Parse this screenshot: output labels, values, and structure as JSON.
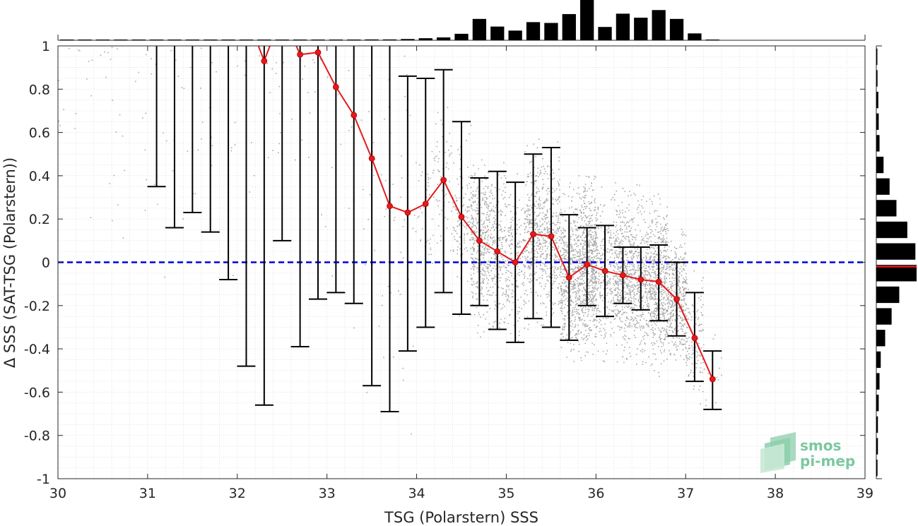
{
  "chart_data": {
    "type": "scatter",
    "xlabel": "TSG (Polarstern) SSS",
    "ylabel": "Δ SSS (SAT-TSG (Polarstern))",
    "xlim": [
      30,
      39
    ],
    "ylim": [
      -1,
      1
    ],
    "x_ticks": [
      "30",
      "31",
      "32",
      "33",
      "34",
      "35",
      "36",
      "37",
      "38",
      "39"
    ],
    "y_ticks": [
      "-1",
      "-0.8",
      "-0.6",
      "-0.4",
      "-0.2",
      "0",
      "0.2",
      "0.4",
      "0.6",
      "0.8",
      "1"
    ],
    "grid": true,
    "reference_line": {
      "y": 0,
      "style": "dashed",
      "color": "#0000e0"
    },
    "colors": {
      "mean_line": "#e41a1c",
      "error_bars": "#000000",
      "scatter": "#8c8c8c",
      "histogram": "#000000"
    },
    "binned_mean": {
      "x": [
        31.1,
        31.3,
        31.5,
        31.7,
        31.9,
        32.1,
        32.3,
        32.5,
        32.7,
        32.9,
        33.1,
        33.3,
        33.5,
        33.7,
        33.9,
        34.1,
        34.3,
        34.5,
        34.7,
        34.9,
        35.1,
        35.3,
        35.5,
        35.7,
        35.9,
        36.1,
        36.3,
        36.5,
        36.7,
        36.9,
        37.1,
        37.3
      ],
      "mean": [
        null,
        null,
        null,
        null,
        null,
        null,
        0.93,
        null,
        0.96,
        0.97,
        0.81,
        0.68,
        0.48,
        0.26,
        0.23,
        0.27,
        0.38,
        0.21,
        0.1,
        0.05,
        0.0,
        0.13,
        0.12,
        -0.07,
        -0.01,
        -0.04,
        -0.06,
        -0.08,
        -0.09,
        -0.17,
        -0.35,
        -0.54
      ],
      "lower": [
        0.35,
        0.16,
        0.23,
        0.14,
        -0.08,
        -0.48,
        -0.66,
        0.1,
        -0.39,
        -0.17,
        -0.14,
        -0.19,
        -0.57,
        -0.69,
        -0.41,
        -0.3,
        -0.14,
        -0.24,
        -0.2,
        -0.31,
        -0.37,
        -0.26,
        -0.3,
        -0.36,
        -0.2,
        -0.25,
        -0.19,
        -0.22,
        -0.27,
        -0.34,
        -0.55,
        -0.68
      ],
      "upper": [
        1.0,
        1.0,
        1.0,
        1.0,
        1.0,
        1.0,
        1.0,
        1.0,
        1.0,
        1.0,
        1.0,
        1.0,
        1.0,
        1.0,
        0.86,
        0.85,
        0.89,
        0.65,
        0.39,
        0.42,
        0.37,
        0.5,
        0.53,
        0.22,
        0.16,
        0.17,
        0.07,
        0.07,
        0.08,
        0.0,
        -0.14,
        -0.41
      ]
    },
    "top_histogram": {
      "x": [
        30.1,
        30.3,
        30.5,
        30.7,
        30.9,
        31.1,
        31.3,
        31.5,
        31.7,
        31.9,
        32.1,
        32.3,
        32.5,
        32.7,
        32.9,
        33.1,
        33.3,
        33.5,
        33.7,
        33.9,
        34.1,
        34.3,
        34.5,
        34.7,
        34.9,
        35.1,
        35.3,
        35.5,
        35.7,
        35.9,
        36.1,
        36.3,
        36.5,
        36.7,
        36.9,
        37.1,
        37.3
      ],
      "relative_frequency": [
        0.01,
        0.01,
        0.01,
        0.01,
        0.01,
        0.01,
        0.01,
        0.01,
        0.01,
        0.01,
        0.01,
        0.01,
        0.01,
        0.01,
        0.01,
        0.01,
        0.01,
        0.02,
        0.02,
        0.03,
        0.05,
        0.07,
        0.16,
        0.53,
        0.34,
        0.24,
        0.45,
        0.43,
        0.65,
        1.0,
        0.33,
        0.66,
        0.56,
        0.75,
        0.53,
        0.17,
        0.01
      ]
    },
    "right_histogram": {
      "y": [
        -0.95,
        -0.85,
        -0.75,
        -0.65,
        -0.55,
        -0.45,
        -0.35,
        -0.25,
        -0.15,
        -0.05,
        0.05,
        0.15,
        0.25,
        0.35,
        0.45,
        0.55,
        0.65,
        0.75,
        0.85,
        0.95
      ],
      "relative_frequency": [
        0.03,
        0.04,
        0.04,
        0.06,
        0.08,
        0.11,
        0.22,
        0.38,
        0.57,
        1.0,
        0.97,
        0.77,
        0.5,
        0.33,
        0.18,
        0.08,
        0.06,
        0.05,
        0.03,
        0.02
      ],
      "median": -0.02
    },
    "logo": {
      "line1": "smos",
      "line2": "pi-mep"
    }
  }
}
